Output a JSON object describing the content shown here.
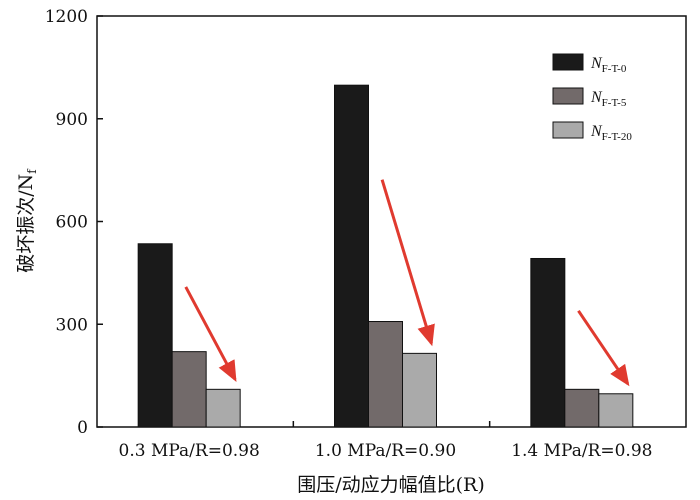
{
  "chart_data": {
    "type": "bar",
    "title": "",
    "xlabel": "围压/动应力幅值比(R)",
    "ylabel": "破坏振次/N",
    "ylabel_subscript": "f",
    "ylim": [
      0,
      1200
    ],
    "yticks": [
      "0",
      "300",
      "600",
      "900",
      "1200"
    ],
    "categories": [
      "0.3 MPa/R=0.98",
      "1.0 MPa/R=0.90",
      "1.4 MPa/R=0.98"
    ],
    "series": [
      {
        "name": "N",
        "subscript": "F-T-0",
        "color": "#1a1a1a",
        "values": [
          535,
          998,
          492
        ]
      },
      {
        "name": "N",
        "subscript": "F-T-5",
        "color": "#726a6a",
        "values": [
          220,
          308,
          110
        ]
      },
      {
        "name": "N",
        "subscript": "F-T-20",
        "color": "#aaaaaa",
        "values": [
          110,
          215,
          97
        ]
      }
    ],
    "legend_position": "top-right",
    "grid": false,
    "annotations": [
      {
        "type": "arrow",
        "color": "#e03a2f",
        "meaning": "decreasing trend",
        "count": 3
      }
    ]
  }
}
